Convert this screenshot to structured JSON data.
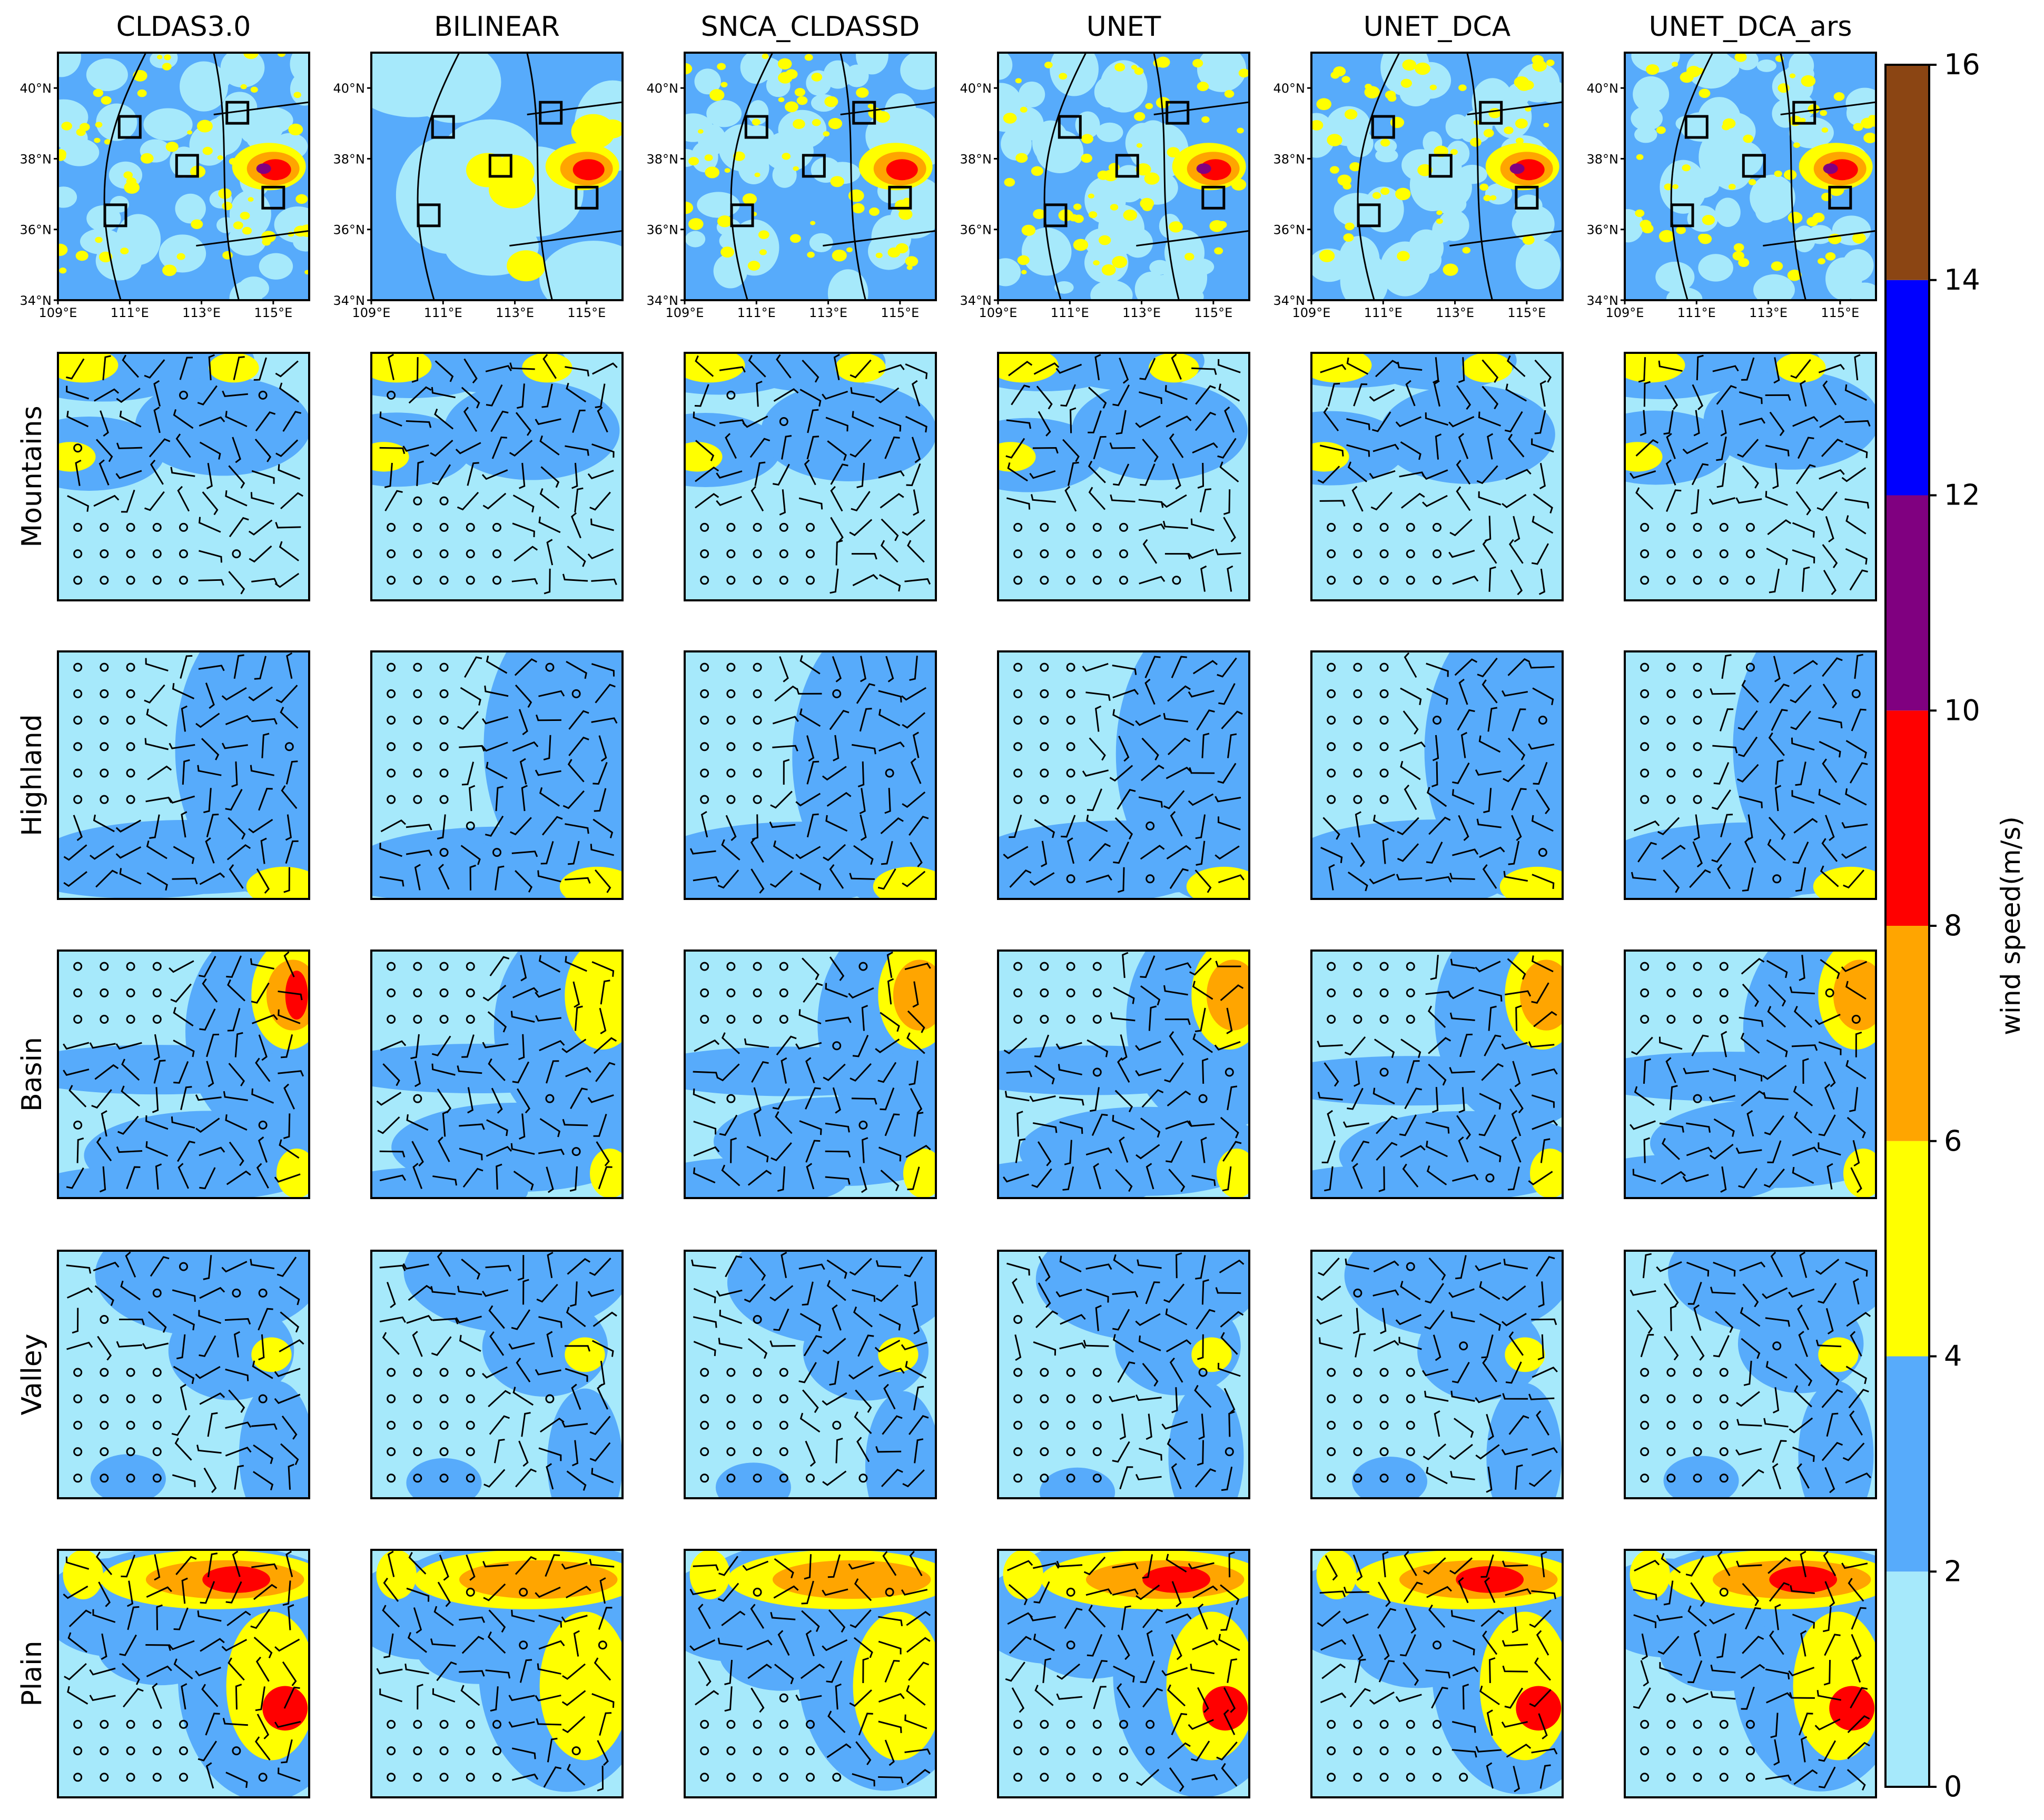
{
  "figure": {
    "columns": [
      "CLDAS3.0",
      "BILINEAR",
      "SNCA_CLDASSD",
      "UNET",
      "UNET_DCA",
      "UNET_DCA_ars"
    ],
    "rows": [
      "Mountains",
      "Highland",
      "Basin",
      "Valley",
      "Plain"
    ]
  },
  "colorbar": {
    "label": "wind speed(m/s)",
    "ticks": [
      "0",
      "2",
      "4",
      "6",
      "8",
      "10",
      "12",
      "14",
      "16"
    ],
    "levels": [
      0,
      2,
      4,
      6,
      8,
      10,
      12,
      14,
      16
    ],
    "colors": [
      "#a6e9fb",
      "#57abfb",
      "#ffff00",
      "#ffa500",
      "#ff0000",
      "#800080",
      "#0000ff",
      "#8b4513"
    ]
  },
  "map": {
    "lat_ticks": [
      "34°N",
      "36°N",
      "38°N",
      "40°N"
    ],
    "lon_ticks": [
      "109°E",
      "111°E",
      "113°E",
      "115°E"
    ],
    "lat_range": [
      34,
      41
    ],
    "lon_range": [
      109,
      116
    ],
    "region_boxes": [
      {
        "name": "Mountains",
        "lon": 111.0,
        "lat": 38.9
      },
      {
        "name": "Highland",
        "lon": 114.0,
        "lat": 39.3
      },
      {
        "name": "Basin",
        "lon": 112.6,
        "lat": 37.8
      },
      {
        "name": "Valley",
        "lon": 110.6,
        "lat": 36.4
      },
      {
        "name": "Plain",
        "lon": 115.0,
        "lat": 36.9
      }
    ]
  },
  "chart_data": {
    "type": "heatmap",
    "variable": "wind speed",
    "units": "m/s",
    "columns": [
      "CLDAS3.0",
      "BILINEAR",
      "SNCA_CLDASSD",
      "UNET",
      "UNET_DCA",
      "UNET_DCA_ars"
    ],
    "rows": [
      "Mountains",
      "Highland",
      "Basin",
      "Valley",
      "Plain"
    ],
    "color_levels": [
      0,
      2,
      4,
      6,
      8,
      10,
      12,
      14,
      16
    ],
    "region_max_speed_approx": {
      "Mountains": [
        5,
        4,
        5,
        5,
        5,
        5
      ],
      "Highland": [
        5,
        5,
        5,
        4,
        4,
        4
      ],
      "Basin": [
        9,
        5,
        6,
        7,
        7,
        6
      ],
      "Valley": [
        5,
        4,
        4,
        5,
        5,
        5
      ],
      "Plain": [
        9,
        7,
        7,
        8,
        9,
        9
      ]
    }
  }
}
